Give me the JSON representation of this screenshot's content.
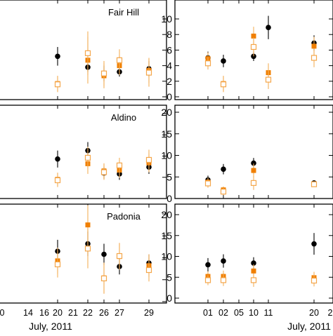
{
  "colors": {
    "black_series": "#000000",
    "orange_filled": "#f07f00",
    "orange_open": "#f4a64a",
    "errorbar_orange": "#f4b05a"
  },
  "chart_data": [
    {
      "type": "scatter",
      "title": "Fair Hill",
      "categories": [
        "20",
        "22",
        "26",
        "27",
        "29"
      ],
      "ylim": [
        0,
        12
      ],
      "ytick_labels": [],
      "series": [
        {
          "marker": "black-circle",
          "values": [
            5.2,
            3.8,
            3.0,
            3.2,
            3.6
          ],
          "err": [
            1.2,
            0.6,
            1.0,
            0.6,
            1.0
          ]
        },
        {
          "marker": "orange-filled-square",
          "values": [
            1.7,
            4.7,
            2.7,
            4.0,
            3.4
          ],
          "err": [
            1.0,
            3.0,
            1.6,
            1.2,
            1.6
          ]
        },
        {
          "marker": "orange-open-square",
          "values": [
            1.6,
            5.6,
            3.0,
            4.7,
            3.1
          ],
          "err": [
            1.0,
            2.8,
            1.6,
            1.4,
            1.8
          ]
        }
      ]
    },
    {
      "type": "scatter",
      "categories": [
        "01",
        "02",
        "05",
        "10",
        "11",
        "20"
      ],
      "ylim": [
        0,
        12
      ],
      "ytick_labels": [
        "0",
        "2",
        "4",
        "6",
        "8",
        "10"
      ],
      "series": [
        {
          "marker": "black-circle",
          "values": [
            5.0,
            4.6,
            null,
            5.2,
            8.9,
            6.9
          ],
          "err": [
            0.8,
            0.8,
            null,
            0.6,
            1.5,
            1.0
          ]
        },
        {
          "marker": "orange-filled-square",
          "values": [
            4.9,
            1.7,
            null,
            7.8,
            3.1,
            6.5
          ],
          "err": [
            0.8,
            1.0,
            null,
            1.2,
            1.2,
            1.2
          ]
        },
        {
          "marker": "orange-open-square",
          "values": [
            4.3,
            1.6,
            null,
            6.4,
            2.2,
            5.0
          ],
          "err": [
            0.8,
            1.0,
            null,
            1.2,
            1.2,
            1.2
          ]
        }
      ]
    },
    {
      "type": "scatter",
      "title": "Aldino",
      "categories": [
        "20",
        "22",
        "26",
        "27",
        "29"
      ],
      "ylim": [
        0,
        22
      ],
      "ytick_labels": [],
      "series": [
        {
          "marker": "black-circle",
          "values": [
            9.3,
            11.3,
            6.0,
            5.8,
            7.4
          ],
          "err": [
            2.0,
            2.0,
            1.4,
            1.4,
            1.6
          ]
        },
        {
          "marker": "orange-filled-square",
          "values": [
            4.5,
            8.2,
            6.5,
            6.7,
            8.4
          ],
          "err": [
            1.6,
            2.4,
            1.8,
            1.8,
            2.2
          ]
        },
        {
          "marker": "orange-open-square",
          "values": [
            4.3,
            9.6,
            6.2,
            7.8,
            9.1
          ],
          "err": [
            1.6,
            2.6,
            1.8,
            1.8,
            2.4
          ]
        }
      ]
    },
    {
      "type": "scatter",
      "categories": [
        "01",
        "02",
        "05",
        "10",
        "11",
        "20"
      ],
      "ylim": [
        0,
        22
      ],
      "ytick_labels": [
        "0",
        "5",
        "10",
        "15",
        "20"
      ],
      "series": [
        {
          "marker": "black-circle",
          "values": [
            4.3,
            6.8,
            null,
            8.2,
            null,
            3.6
          ],
          "err": [
            1.0,
            1.2,
            null,
            1.2,
            null,
            0.6
          ]
        },
        {
          "marker": "orange-filled-square",
          "values": [
            3.8,
            2.0,
            null,
            6.5,
            null,
            3.4
          ],
          "err": [
            1.0,
            0.8,
            null,
            1.6,
            null,
            0.6
          ]
        },
        {
          "marker": "orange-open-square",
          "values": [
            3.5,
            1.6,
            null,
            3.6,
            null,
            3.3
          ],
          "err": [
            1.0,
            0.8,
            null,
            1.6,
            null,
            0.6
          ]
        }
      ]
    },
    {
      "type": "scatter",
      "title": "Padonia",
      "categories": [
        "20",
        "22",
        "26",
        "27",
        "29"
      ],
      "xlabel": "July, 2011",
      "xtick_labels": [
        "0",
        "14",
        "16",
        "20",
        "21",
        "22",
        "26",
        "27",
        "29"
      ],
      "ylim": [
        0,
        22
      ],
      "ytick_labels": [],
      "series": [
        {
          "marker": "black-circle",
          "values": [
            11.5,
            13.2,
            10.8,
            8.0,
            8.8
          ],
          "err": [
            2.6,
            2.8,
            2.4,
            1.8,
            2.0
          ]
        },
        {
          "marker": "orange-filled-square",
          "values": [
            9.3,
            17.5,
            5.4,
            10.3,
            8.2
          ],
          "err": [
            3.0,
            4.5,
            3.5,
            3.0,
            2.6
          ]
        },
        {
          "marker": "orange-open-square",
          "values": [
            8.5,
            12.1,
            5.3,
            10.4,
            7.2
          ],
          "err": [
            3.0,
            4.5,
            3.5,
            3.0,
            2.6
          ]
        }
      ]
    },
    {
      "type": "scatter",
      "categories": [
        "01",
        "02",
        "05",
        "10",
        "11",
        "20"
      ],
      "xlabel": "July, 2011",
      "xtick_labels": [
        "01",
        "02",
        "05",
        "10",
        "11",
        "20",
        "2"
      ],
      "ylim": [
        0,
        22
      ],
      "ytick_labels": [
        "0",
        "5",
        "10",
        "15",
        "20"
      ],
      "series": [
        {
          "marker": "black-circle",
          "values": [
            8.0,
            8.9,
            null,
            8.4,
            null,
            13.0
          ],
          "err": [
            1.6,
            1.6,
            null,
            1.4,
            null,
            2.6
          ]
        },
        {
          "marker": "orange-filled-square",
          "values": [
            5.2,
            5.2,
            null,
            6.5,
            null,
            4.9
          ],
          "err": [
            1.2,
            1.4,
            null,
            1.6,
            null,
            1.4
          ]
        },
        {
          "marker": "orange-open-square",
          "values": [
            4.3,
            4.3,
            null,
            4.3,
            null,
            4.2
          ],
          "err": [
            1.2,
            1.4,
            null,
            1.6,
            null,
            1.4
          ]
        }
      ]
    }
  ]
}
